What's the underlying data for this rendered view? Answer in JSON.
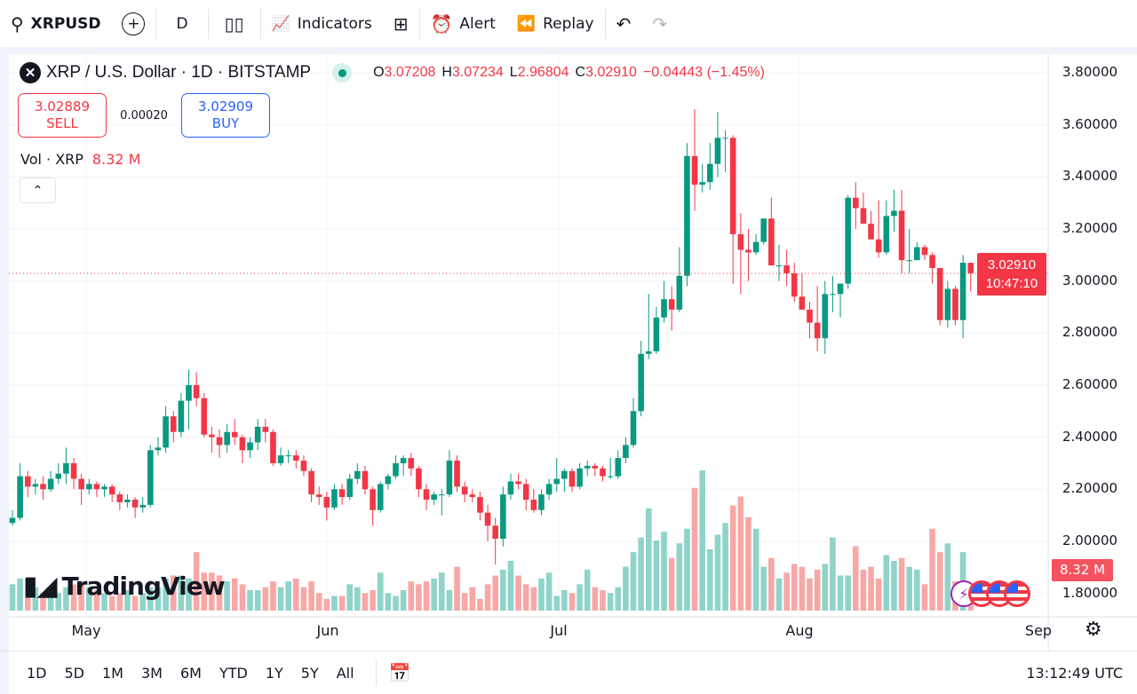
{
  "toolbar": {
    "symbol": "XRPUSD",
    "interval": "D",
    "indicators": "Indicators",
    "alert": "Alert",
    "replay": "Replay"
  },
  "legend": {
    "title": "XRP / U.S. Dollar · 1D · BITSTAMP",
    "logo_letter": "✕",
    "o_label": "O",
    "o": "3.07208",
    "h_label": "H",
    "h": "3.07234",
    "l_label": "L",
    "l": "2.96804",
    "c_label": "C",
    "c": "3.02910",
    "change": "−0.04443 (−1.45%)"
  },
  "trade": {
    "sell_price": "3.02889",
    "sell_label": "SELL",
    "spread": "0.00020",
    "buy_price": "3.02909",
    "buy_label": "BUY"
  },
  "volume": {
    "label": "Vol · XRP",
    "value": "8.32 M"
  },
  "price_axis": [
    "3.80000",
    "3.60000",
    "3.40000",
    "3.20000",
    "3.00000",
    "2.80000",
    "2.60000",
    "2.40000",
    "2.20000",
    "2.00000",
    "1.80000"
  ],
  "current": {
    "price": "3.02910",
    "countdown": "10:47:10",
    "volume": "8.32 M"
  },
  "time_axis": [
    "May",
    "Jun",
    "Jul",
    "Aug",
    "Sep"
  ],
  "bottom": {
    "ranges": [
      "1D",
      "5D",
      "1M",
      "3M",
      "6M",
      "YTD",
      "1Y",
      "5Y",
      "All"
    ],
    "clock": "13:12:49 UTC"
  },
  "watermark": "TradingView",
  "colors": {
    "up": "#089981",
    "down": "#f23645",
    "up_vol": "#8fd3c9",
    "down_vol": "#f7a8a6"
  },
  "chart_data": {
    "type": "candlestick",
    "symbol": "XRP / U.S. Dollar",
    "interval": "1D",
    "ylim": [
      1.8,
      3.8
    ],
    "candles_ohlc": [
      [
        2.07,
        2.12,
        2.06,
        2.09
      ],
      [
        2.09,
        2.3,
        2.08,
        2.25
      ],
      [
        2.25,
        2.27,
        2.17,
        2.21
      ],
      [
        2.21,
        2.24,
        2.18,
        2.22
      ],
      [
        2.22,
        2.25,
        2.16,
        2.2
      ],
      [
        2.2,
        2.27,
        2.19,
        2.24
      ],
      [
        2.24,
        2.3,
        2.22,
        2.26
      ],
      [
        2.26,
        2.36,
        2.22,
        2.3
      ],
      [
        2.3,
        2.32,
        2.2,
        2.24
      ],
      [
        2.24,
        2.26,
        2.14,
        2.2
      ],
      [
        2.2,
        2.24,
        2.18,
        2.22
      ],
      [
        2.22,
        2.23,
        2.17,
        2.2
      ],
      [
        2.2,
        2.22,
        2.17,
        2.21
      ],
      [
        2.21,
        2.22,
        2.15,
        2.18
      ],
      [
        2.18,
        2.19,
        2.12,
        2.15
      ],
      [
        2.15,
        2.18,
        2.13,
        2.16
      ],
      [
        2.16,
        2.17,
        2.09,
        2.13
      ],
      [
        2.13,
        2.17,
        2.11,
        2.14
      ],
      [
        2.14,
        2.37,
        2.13,
        2.35
      ],
      [
        2.35,
        2.4,
        2.33,
        2.36
      ],
      [
        2.36,
        2.52,
        2.34,
        2.48
      ],
      [
        2.48,
        2.5,
        2.38,
        2.42
      ],
      [
        2.42,
        2.57,
        2.4,
        2.54
      ],
      [
        2.54,
        2.66,
        2.43,
        2.6
      ],
      [
        2.6,
        2.65,
        2.52,
        2.55
      ],
      [
        2.55,
        2.57,
        2.4,
        2.41
      ],
      [
        2.41,
        2.44,
        2.34,
        2.4
      ],
      [
        2.4,
        2.43,
        2.32,
        2.37
      ],
      [
        2.37,
        2.45,
        2.34,
        2.42
      ],
      [
        2.42,
        2.47,
        2.37,
        2.4
      ],
      [
        2.4,
        2.41,
        2.3,
        2.35
      ],
      [
        2.35,
        2.4,
        2.32,
        2.38
      ],
      [
        2.38,
        2.47,
        2.35,
        2.44
      ],
      [
        2.44,
        2.47,
        2.38,
        2.42
      ],
      [
        2.42,
        2.43,
        2.29,
        2.3
      ],
      [
        2.3,
        2.36,
        2.29,
        2.33
      ],
      [
        2.33,
        2.35,
        2.3,
        2.33
      ],
      [
        2.33,
        2.35,
        2.28,
        2.31
      ],
      [
        2.31,
        2.33,
        2.25,
        2.27
      ],
      [
        2.27,
        2.28,
        2.15,
        2.18
      ],
      [
        2.18,
        2.21,
        2.14,
        2.17
      ],
      [
        2.17,
        2.19,
        2.08,
        2.13
      ],
      [
        2.13,
        2.22,
        2.12,
        2.2
      ],
      [
        2.2,
        2.22,
        2.14,
        2.17
      ],
      [
        2.17,
        2.26,
        2.16,
        2.24
      ],
      [
        2.24,
        2.3,
        2.22,
        2.27
      ],
      [
        2.27,
        2.29,
        2.18,
        2.2
      ],
      [
        2.2,
        2.21,
        2.06,
        2.12
      ],
      [
        2.12,
        2.23,
        2.11,
        2.22
      ],
      [
        2.22,
        2.26,
        2.2,
        2.25
      ],
      [
        2.25,
        2.33,
        2.24,
        2.3
      ],
      [
        2.3,
        2.33,
        2.25,
        2.32
      ],
      [
        2.32,
        2.34,
        2.25,
        2.28
      ],
      [
        2.28,
        2.29,
        2.17,
        2.2
      ],
      [
        2.2,
        2.22,
        2.12,
        2.16
      ],
      [
        2.16,
        2.19,
        2.14,
        2.18
      ],
      [
        2.18,
        2.2,
        2.1,
        2.18
      ],
      [
        2.18,
        2.35,
        2.17,
        2.31
      ],
      [
        2.31,
        2.33,
        2.19,
        2.21
      ],
      [
        2.21,
        2.23,
        2.15,
        2.18
      ],
      [
        2.18,
        2.2,
        2.15,
        2.17
      ],
      [
        2.17,
        2.19,
        2.08,
        2.11
      ],
      [
        2.11,
        2.14,
        2.0,
        2.06
      ],
      [
        2.06,
        2.09,
        1.91,
        2.01
      ],
      [
        2.01,
        2.21,
        1.98,
        2.18
      ],
      [
        2.18,
        2.26,
        2.16,
        2.23
      ],
      [
        2.23,
        2.26,
        2.2,
        2.22
      ],
      [
        2.22,
        2.24,
        2.12,
        2.16
      ],
      [
        2.16,
        2.2,
        2.11,
        2.12
      ],
      [
        2.12,
        2.2,
        2.1,
        2.18
      ],
      [
        2.18,
        2.24,
        2.16,
        2.22
      ],
      [
        2.22,
        2.32,
        2.19,
        2.24
      ],
      [
        2.24,
        2.28,
        2.19,
        2.27
      ],
      [
        2.27,
        2.28,
        2.19,
        2.21
      ],
      [
        2.21,
        2.3,
        2.2,
        2.28
      ],
      [
        2.28,
        2.31,
        2.25,
        2.29
      ],
      [
        2.29,
        2.3,
        2.25,
        2.28
      ],
      [
        2.28,
        2.29,
        2.23,
        2.25
      ],
      [
        2.25,
        2.32,
        2.24,
        2.25
      ],
      [
        2.25,
        2.35,
        2.24,
        2.32
      ],
      [
        2.32,
        2.4,
        2.3,
        2.37
      ],
      [
        2.37,
        2.55,
        2.36,
        2.5
      ],
      [
        2.5,
        2.77,
        2.48,
        2.72
      ],
      [
        2.72,
        2.95,
        2.7,
        2.73
      ],
      [
        2.73,
        2.9,
        2.72,
        2.86
      ],
      [
        2.86,
        3.0,
        2.84,
        2.93
      ],
      [
        2.93,
        2.98,
        2.81,
        2.89
      ],
      [
        2.89,
        3.13,
        2.88,
        3.02
      ],
      [
        3.02,
        3.53,
        2.98,
        3.48
      ],
      [
        3.48,
        3.66,
        3.27,
        3.37
      ],
      [
        3.37,
        3.45,
        3.34,
        3.38
      ],
      [
        3.38,
        3.53,
        3.35,
        3.45
      ],
      [
        3.45,
        3.65,
        3.4,
        3.55
      ],
      [
        3.55,
        3.58,
        3.42,
        3.55
      ],
      [
        3.55,
        3.56,
        2.99,
        3.18
      ],
      [
        3.18,
        3.26,
        2.95,
        3.12
      ],
      [
        3.12,
        3.2,
        3.0,
        3.11
      ],
      [
        3.11,
        3.18,
        3.1,
        3.15
      ],
      [
        3.15,
        3.24,
        3.14,
        3.24
      ],
      [
        3.24,
        3.32,
        3.06,
        3.06
      ],
      [
        3.06,
        3.14,
        3.0,
        3.06
      ],
      [
        3.06,
        3.12,
        2.98,
        3.03
      ],
      [
        3.03,
        3.07,
        2.92,
        2.94
      ],
      [
        2.94,
        3.03,
        2.89,
        2.89
      ],
      [
        2.89,
        2.92,
        2.78,
        2.84
      ],
      [
        2.84,
        2.98,
        2.73,
        2.78
      ],
      [
        2.78,
        3.0,
        2.72,
        2.95
      ],
      [
        2.95,
        3.02,
        2.88,
        2.95
      ],
      [
        2.95,
        2.97,
        2.86,
        2.99
      ],
      [
        2.99,
        3.33,
        2.97,
        3.32
      ],
      [
        3.32,
        3.38,
        3.2,
        3.28
      ],
      [
        3.28,
        3.34,
        3.22,
        3.22
      ],
      [
        3.22,
        3.27,
        3.16,
        3.16
      ],
      [
        3.16,
        3.31,
        3.09,
        3.11
      ],
      [
        3.11,
        3.31,
        3.1,
        3.25
      ],
      [
        3.25,
        3.35,
        3.19,
        3.27
      ],
      [
        3.27,
        3.35,
        3.03,
        3.08
      ],
      [
        3.08,
        3.2,
        3.03,
        3.08
      ],
      [
        3.08,
        3.15,
        3.08,
        3.13
      ],
      [
        3.13,
        3.14,
        3.08,
        3.1
      ],
      [
        3.1,
        3.11,
        2.99,
        3.05
      ],
      [
        3.05,
        3.05,
        2.83,
        2.85
      ],
      [
        2.85,
        3.0,
        2.82,
        2.97
      ],
      [
        2.97,
        2.98,
        2.83,
        2.85
      ],
      [
        2.85,
        3.1,
        2.78,
        3.07
      ],
      [
        3.07,
        3.07,
        2.96,
        3.03
      ]
    ],
    "volumes_m": [
      18,
      22,
      22,
      16,
      12,
      14,
      12,
      16,
      18,
      20,
      16,
      14,
      12,
      10,
      12,
      14,
      10,
      12,
      16,
      16,
      22,
      24,
      24,
      22,
      40,
      26,
      26,
      24,
      20,
      22,
      18,
      14,
      14,
      16,
      20,
      16,
      20,
      22,
      16,
      20,
      12,
      8,
      10,
      10,
      18,
      16,
      12,
      14,
      26,
      12,
      10,
      14,
      20,
      18,
      20,
      22,
      26,
      14,
      30,
      12,
      16,
      8,
      18,
      24,
      28,
      34,
      24,
      18,
      16,
      22,
      26,
      10,
      14,
      12,
      18,
      28,
      16,
      14,
      12,
      16,
      30,
      40,
      50,
      70,
      48,
      54,
      36,
      46,
      56,
      84,
      96,
      42,
      52,
      60,
      72,
      78,
      64,
      56,
      30,
      36,
      22,
      26,
      32,
      30,
      22,
      28,
      32,
      50,
      24,
      24,
      44,
      28,
      30,
      22,
      38,
      34,
      36,
      30,
      28,
      18,
      56,
      40,
      46,
      20,
      40,
      8.32
    ],
    "current_price": 3.0291
  }
}
